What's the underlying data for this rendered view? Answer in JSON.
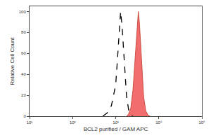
{
  "chart_data": {
    "type": "line",
    "x_label": "BCL2 purified / GAM APC",
    "y_label": "Relative Cell Count",
    "log": "x",
    "grid": false,
    "xlim": [
      10,
      100000
    ],
    "xticks": [
      {
        "value": 10,
        "label": "10¹"
      },
      {
        "value": 100,
        "label": "10²"
      },
      {
        "value": 1000,
        "label": "10³"
      },
      {
        "value": 10000,
        "label": "10⁴"
      },
      {
        "value": 100000,
        "label": "10⁵"
      }
    ],
    "ylim": [
      0,
      105
    ],
    "yticks": [
      0,
      20,
      40,
      60,
      80,
      100
    ],
    "series": [
      {
        "type": "area",
        "color": "#f26d6d",
        "line_style": "solid",
        "x": [
          1778,
          1995,
          2239,
          2512,
          2818,
          3162,
          3350,
          3548,
          3981,
          4467,
          5012,
          5623,
          6310
        ],
        "values": [
          0,
          2,
          8,
          25,
          55,
          90,
          100,
          90,
          50,
          18,
          5,
          1,
          0
        ]
      },
      {
        "type": "line",
        "color": "#000000",
        "line_style": "dashed",
        "x": [
          501,
          631,
          794,
          1000,
          1122,
          1259,
          1300,
          1413,
          1585,
          1778,
          1995,
          2239,
          2512
        ],
        "values": [
          0,
          3,
          10,
          30,
          60,
          95,
          100,
          85,
          50,
          20,
          6,
          1,
          0
        ]
      }
    ]
  }
}
